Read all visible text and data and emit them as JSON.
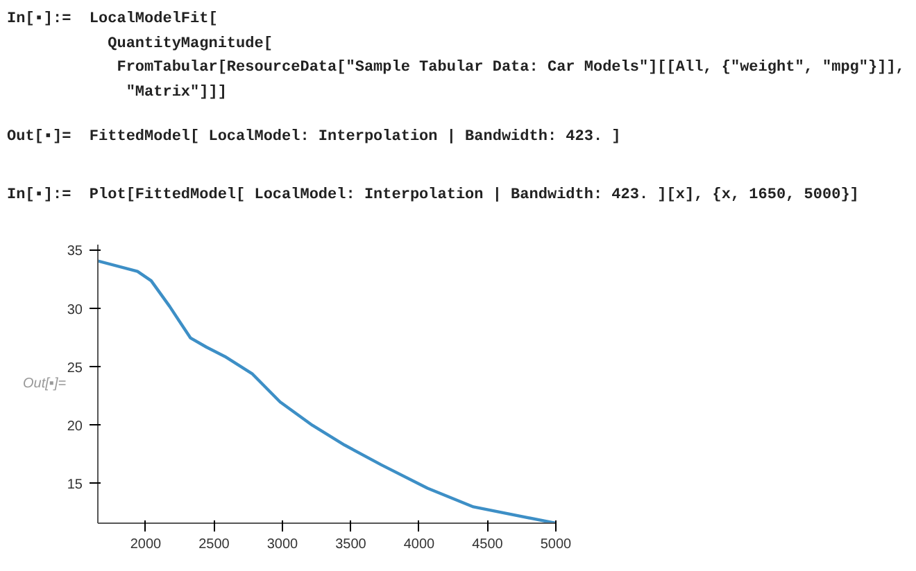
{
  "chart_data": {
    "type": "line",
    "annotations": [
      "In[▪]:=  LocalModelFit[",
      "           QuantityMagnitude[",
      "            FromTabular[ResourceData[\"Sample Tabular Data: Car Models\"][[All, {\"weight\", \"mpg\"}]],",
      "             \"Matrix\"]]]",
      "Out[▪]=  FittedModel[ LocalModel: Interpolation | Bandwidth: 423. ]",
      "In[▪]:=  Plot[FittedModel[ LocalModel: Interpolation | Bandwidth: 423. ][x], {x, 1650, 5000}]",
      "Out[▪]="
    ],
    "x": [
      1650,
      1940,
      2040,
      2175,
      2327,
      2445,
      2579,
      2781,
      2983,
      3219,
      3455,
      3724,
      4061,
      4397,
      5000
    ],
    "series": [
      {
        "color": "#3d8fc6",
        "values": [
          34.1,
          33.2,
          32.4,
          30.2,
          27.5,
          26.7,
          25.9,
          24.4,
          22.0,
          20.0,
          18.3,
          16.6,
          14.6,
          13.0,
          11.6
        ]
      }
    ],
    "xlim": [
      1650,
      5000
    ],
    "ylim": [
      11.6,
      35.5
    ],
    "xticks": [
      2000,
      2500,
      3000,
      3500,
      4000,
      4500,
      5000
    ],
    "yticks": [
      15,
      20,
      25,
      30,
      35
    ],
    "grid": false,
    "marker": "none",
    "line_style": "solid"
  }
}
